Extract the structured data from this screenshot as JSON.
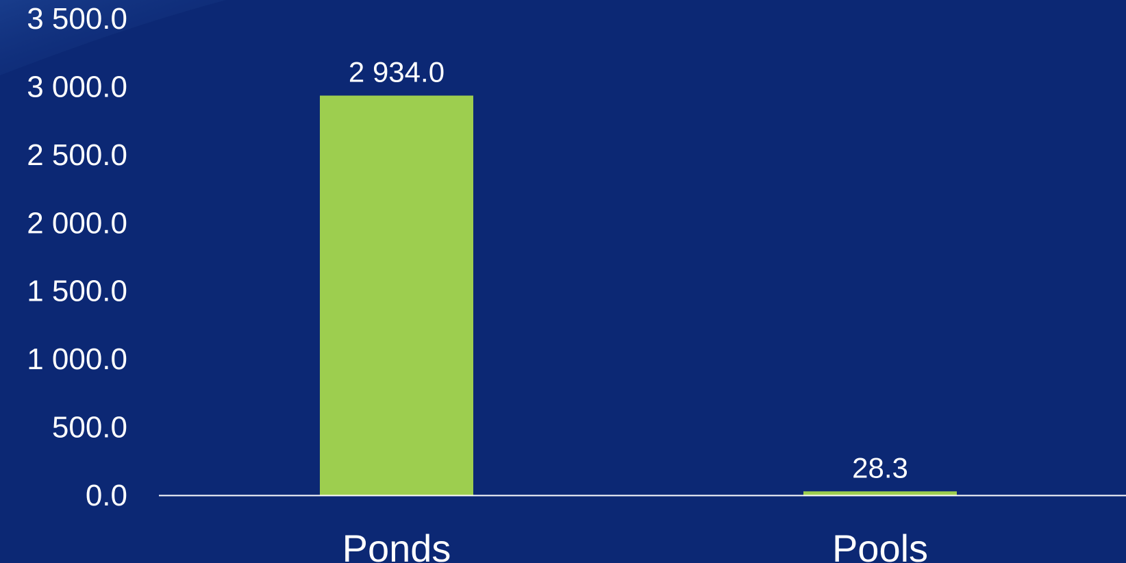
{
  "chart_data": {
    "type": "bar",
    "categories": [
      "Ponds",
      "Pools"
    ],
    "values": [
      2934.0,
      28.3
    ],
    "data_labels": [
      "2 934.0",
      "28.3"
    ],
    "y_ticks": [
      "0.0",
      "500.0",
      "1 000.0",
      "1 500.0",
      "2 000.0",
      "2 500.0",
      "3 000.0",
      "3 500.0"
    ],
    "ylim": [
      0,
      3500
    ],
    "grid": false,
    "legend": "none",
    "colors": {
      "background": "#0c2874",
      "bar": "#9dce4f",
      "axis": "#ffffff",
      "text": "#ffffff"
    }
  }
}
